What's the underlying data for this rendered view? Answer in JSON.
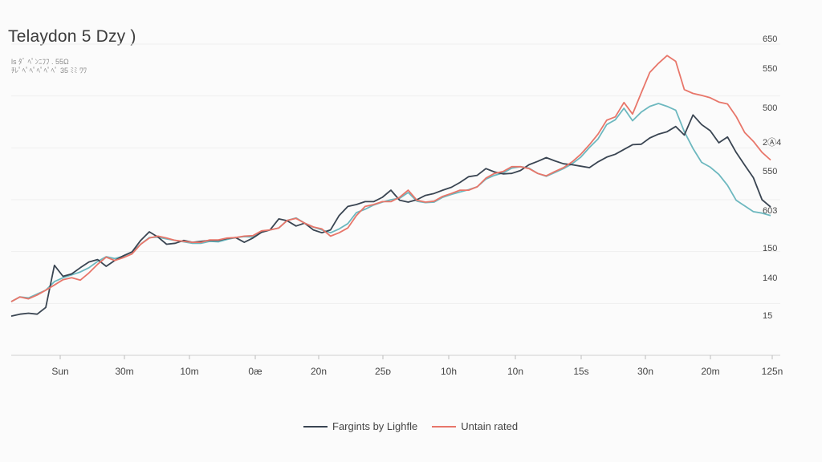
{
  "chart_data": {
    "type": "line",
    "title": "Telaydon 5 Dzy )",
    "subtitle_lines": [
      "ls  ﾀﾞ ﾍﾟﾝﾆﾌﾌ  .   55Ω",
      "ﾁﾚﾟﾍﾟﾍﾟﾍﾟﾍﾟﾍﾟ  35   ﾐﾐ ﾜﾜ"
    ],
    "xlabel": "",
    "ylabel": "",
    "x_tick_labels": [
      "Sun",
      "30m",
      "10m",
      "0æ",
      "20n",
      "25ᴅ",
      "10h",
      "10n",
      "15s",
      "30n",
      "20m",
      "125n"
    ],
    "y_tick_labels": [
      "650",
      "550",
      "500",
      "2Ⓐ4",
      "550",
      "603",
      "150",
      "140",
      "15"
    ],
    "ylim": [
      0,
      650
    ],
    "grid": true,
    "legend_position": "bottom-center",
    "x": [
      0,
      1,
      2,
      3,
      4,
      5,
      6,
      7,
      8,
      9,
      10,
      11,
      12,
      13,
      14,
      15,
      16,
      17,
      18,
      19,
      20,
      21,
      22,
      23,
      24,
      25,
      26,
      27,
      28,
      29,
      30,
      31,
      32,
      33,
      34,
      35,
      36,
      37,
      38,
      39,
      40,
      41,
      42,
      43,
      44,
      45,
      46,
      47,
      48,
      49,
      50,
      51,
      52,
      53,
      54,
      55,
      56,
      57,
      58,
      59,
      60,
      61,
      62,
      63,
      64,
      65,
      66,
      67,
      68,
      69,
      70,
      71,
      72,
      73,
      74,
      75,
      76,
      77,
      78,
      79,
      80,
      81,
      82,
      83,
      84,
      85,
      86,
      87,
      88
    ],
    "series": [
      {
        "name": "Fargints by Lighfle",
        "color": "#3a4552",
        "values": [
          82,
          86,
          88,
          86,
          100,
          188,
          165,
          170,
          183,
          195,
          200,
          186,
          198,
          208,
          216,
          240,
          258,
          247,
          232,
          234,
          240,
          236,
          238,
          240,
          240,
          244,
          246,
          236,
          245,
          257,
          262,
          285,
          281,
          270,
          276,
          262,
          256,
          262,
          292,
          311,
          315,
          321,
          321,
          330,
          345,
          324,
          320,
          325,
          334,
          338,
          345,
          351,
          361,
          373,
          376,
          390,
          383,
          379,
          380,
          386,
          398,
          405,
          413,
          406,
          400,
          398,
          395,
          392,
          404,
          414,
          420,
          430,
          440,
          441,
          454,
          462,
          467,
          478,
          460,
          502,
          482,
          469,
          444,
          456,
          424,
          397,
          371,
          325,
          310
        ]
      },
      {
        "name": "Untain rated",
        "color": "#e8766a",
        "values": [
          112,
          122,
          118,
          126,
          136,
          147,
          158,
          162,
          157,
          172,
          190,
          205,
          198,
          204,
          212,
          232,
          245,
          249,
          245,
          240,
          238,
          236,
          236,
          241,
          241,
          245,
          246,
          249,
          250,
          260,
          262,
          266,
          282,
          286,
          276,
          268,
          264,
          249,
          256,
          266,
          292,
          311,
          315,
          321,
          321,
          330,
          345,
          324,
          320,
          322,
          332,
          338,
          345,
          345,
          352,
          370,
          380,
          384,
          394,
          394,
          390,
          380,
          375,
          384,
          392,
          404,
          420,
          440,
          462,
          491,
          498,
          528,
          504,
          548,
          591,
          610,
          626,
          614,
          555,
          547,
          543,
          538,
          529,
          525,
          499,
          465,
          447,
          424,
          408
        ]
      },
      {
        "name": "",
        "color": "#6db8bf",
        "values": [
          112,
          122,
          120,
          128,
          136,
          154,
          162,
          168,
          174,
          183,
          196,
          206,
          202,
          207,
          216,
          232,
          246,
          247,
          243,
          240,
          237,
          234,
          234,
          238,
          237,
          242,
          246,
          248,
          247,
          258,
          262,
          266,
          282,
          287,
          276,
          268,
          262,
          256,
          264,
          275,
          298,
          305,
          314,
          320,
          325,
          328,
          340,
          322,
          319,
          320,
          330,
          336,
          341,
          346,
          352,
          368,
          376,
          381,
          391,
          394,
          391,
          380,
          374,
          382,
          390,
          400,
          414,
          434,
          452,
          482,
          492,
          516,
          490,
          508,
          520,
          526,
          520,
          512,
          467,
          432,
          403,
          393,
          378,
          355,
          324,
          312,
          300,
          297,
          292
        ]
      }
    ]
  }
}
